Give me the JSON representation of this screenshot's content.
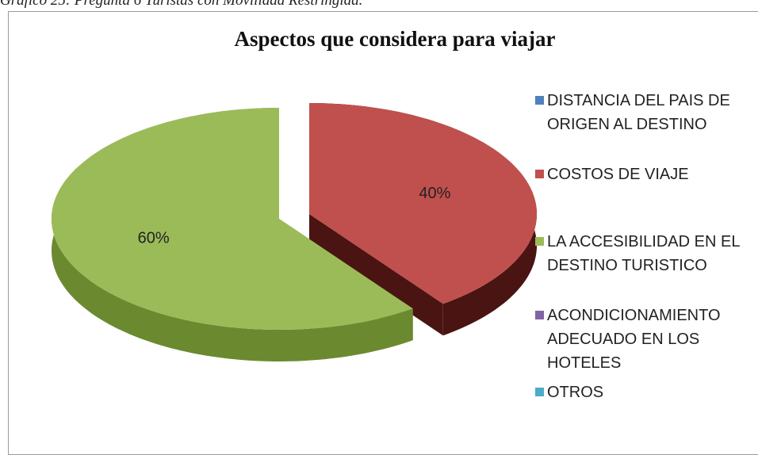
{
  "caption": "Gráfico 25: Pregunta 6 Turistas con Movilidad Restringida.",
  "chart_data": {
    "type": "pie",
    "title": "Aspectos que considera para viajar",
    "categories": [
      "DISTANCIA DEL PAIS DE ORIGEN AL DESTINO",
      "COSTOS DE VIAJE",
      "LA ACCESIBILIDAD EN EL DESTINO TURISTICO",
      "ACONDICIONAMIENTO ADECUADO EN LOS HOTELES",
      "OTROS"
    ],
    "values": [
      0,
      40,
      60,
      0,
      0
    ],
    "value_labels": [
      null,
      "40%",
      "60%",
      null,
      null
    ],
    "colors": [
      "#4f81bd",
      "#c0504d",
      "#9bbb59",
      "#8064a2",
      "#4bacc6"
    ],
    "side_colors": [
      "#2c4d74",
      "#4a1412",
      "#6b8a30",
      "#4b3a63",
      "#2a6f82"
    ],
    "legend": "right",
    "exploded": [
      1
    ]
  }
}
